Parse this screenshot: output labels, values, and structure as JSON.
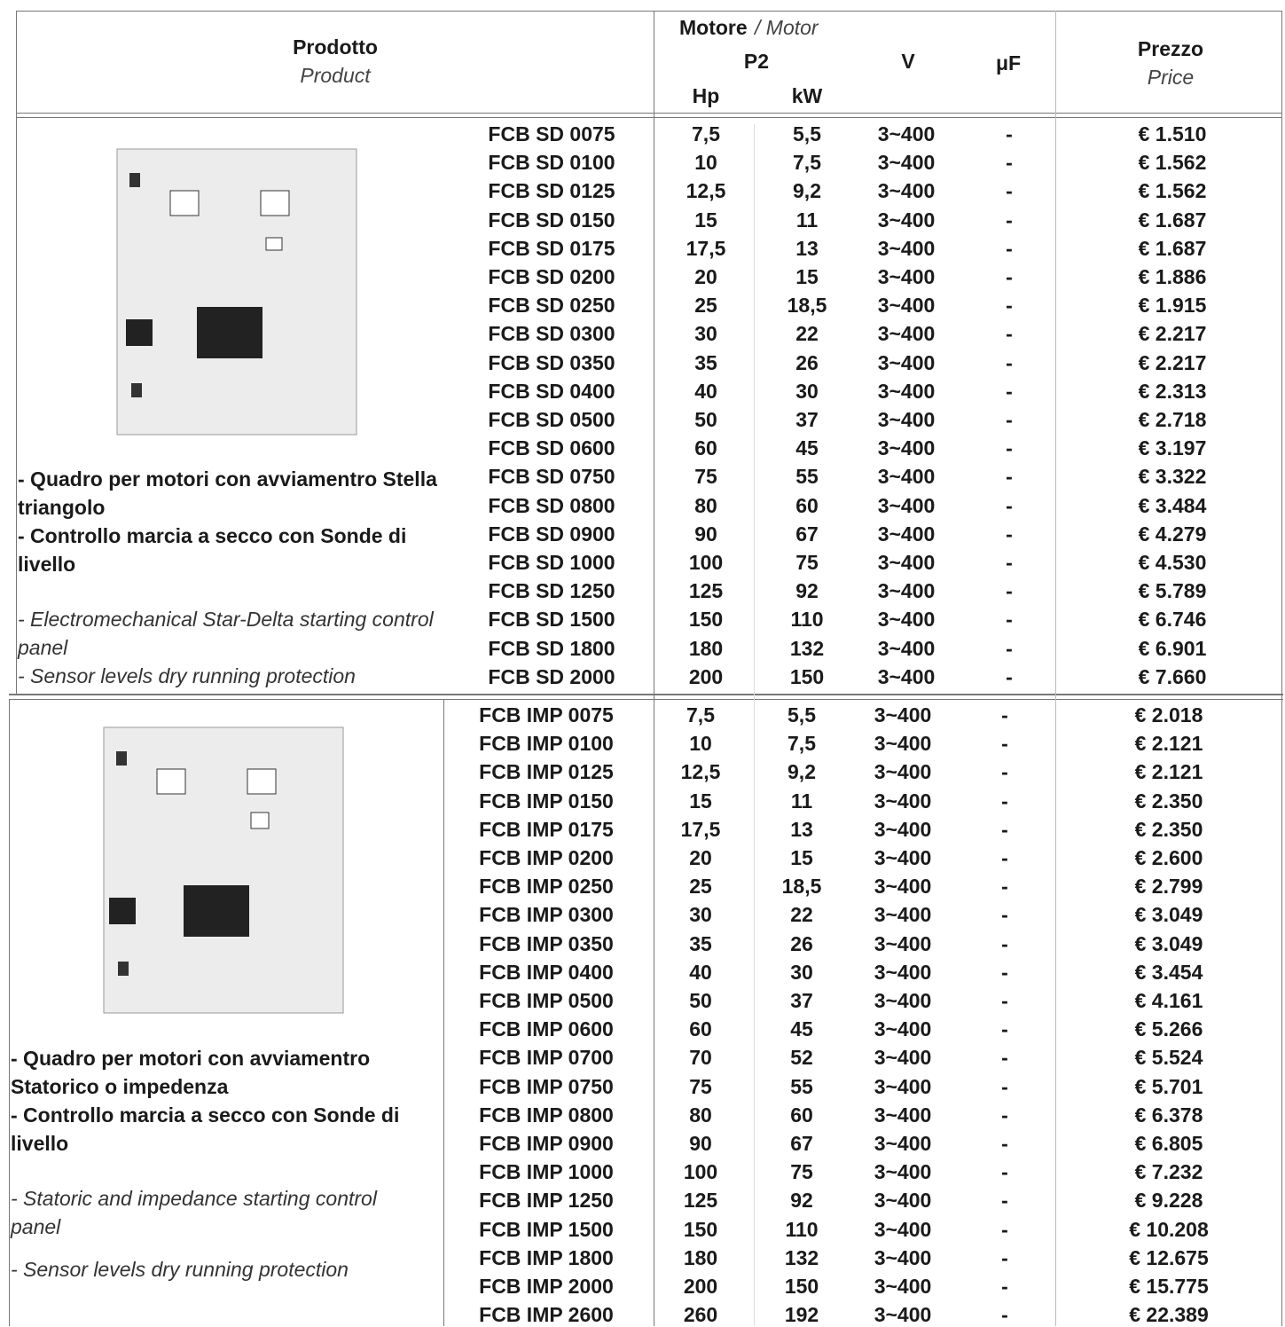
{
  "header": {
    "product_it": "Prodotto",
    "product_en": "Product",
    "motor_it": "Motore",
    "motor_en": "/ Motor",
    "p2": "P2",
    "hp": "Hp",
    "kw": "kW",
    "v": "V",
    "uf": "μF",
    "price_it": "Prezzo",
    "price_en": "Price"
  },
  "sections": [
    {
      "description_it": [
        "- Quadro per motori con avviamentro Stella triangolo",
        "- Controllo marcia a secco con Sonde di livello"
      ],
      "description_en": [
        "- Electromechanical Star-Delta starting control panel",
        "- Sensor levels dry running protection"
      ],
      "rows": [
        [
          "FCB SD 0075",
          "7,5",
          "5,5",
          "3~400",
          "-",
          "€ 1.510"
        ],
        [
          "FCB SD 0100",
          "10",
          "7,5",
          "3~400",
          "-",
          "€ 1.562"
        ],
        [
          "FCB SD 0125",
          "12,5",
          "9,2",
          "3~400",
          "-",
          "€ 1.562"
        ],
        [
          "FCB SD 0150",
          "15",
          "11",
          "3~400",
          "-",
          "€ 1.687"
        ],
        [
          "FCB SD 0175",
          "17,5",
          "13",
          "3~400",
          "-",
          "€ 1.687"
        ],
        [
          "FCB SD 0200",
          "20",
          "15",
          "3~400",
          "-",
          "€ 1.886"
        ],
        [
          "FCB SD 0250",
          "25",
          "18,5",
          "3~400",
          "-",
          "€ 1.915"
        ],
        [
          "FCB SD 0300",
          "30",
          "22",
          "3~400",
          "-",
          "€ 2.217"
        ],
        [
          "FCB SD 0350",
          "35",
          "26",
          "3~400",
          "-",
          "€ 2.217"
        ],
        [
          "FCB SD 0400",
          "40",
          "30",
          "3~400",
          "-",
          "€ 2.313"
        ],
        [
          "FCB SD 0500",
          "50",
          "37",
          "3~400",
          "-",
          "€ 2.718"
        ],
        [
          "FCB SD 0600",
          "60",
          "45",
          "3~400",
          "-",
          "€ 3.197"
        ],
        [
          "FCB SD 0750",
          "75",
          "55",
          "3~400",
          "-",
          "€ 3.322"
        ],
        [
          "FCB SD 0800",
          "80",
          "60",
          "3~400",
          "-",
          "€ 3.484"
        ],
        [
          "FCB SD 0900",
          "90",
          "67",
          "3~400",
          "-",
          "€ 4.279"
        ],
        [
          "FCB SD 1000",
          "100",
          "75",
          "3~400",
          "-",
          "€ 4.530"
        ],
        [
          "FCB SD 1250",
          "125",
          "92",
          "3~400",
          "-",
          "€ 5.789"
        ],
        [
          "FCB SD 1500",
          "150",
          "110",
          "3~400",
          "-",
          "€ 6.746"
        ],
        [
          "FCB SD 1800",
          "180",
          "132",
          "3~400",
          "-",
          "€ 6.901"
        ],
        [
          "FCB SD 2000",
          "200",
          "150",
          "3~400",
          "-",
          "€ 7.660"
        ]
      ]
    },
    {
      "description_it": [
        "- Quadro per motori con avviamentro Statorico o impedenza",
        "- Controllo marcia a secco con Sonde di livello"
      ],
      "description_en": [
        "- Statoric and impedance starting control panel",
        "- Sensor levels dry running protection"
      ],
      "rows": [
        [
          "FCB IMP 0075",
          "7,5",
          "5,5",
          "3~400",
          "-",
          "€ 2.018"
        ],
        [
          "FCB IMP 0100",
          "10",
          "7,5",
          "3~400",
          "-",
          "€ 2.121"
        ],
        [
          "FCB IMP 0125",
          "12,5",
          "9,2",
          "3~400",
          "-",
          "€ 2.121"
        ],
        [
          "FCB IMP 0150",
          "15",
          "11",
          "3~400",
          "-",
          "€ 2.350"
        ],
        [
          "FCB IMP 0175",
          "17,5",
          "13",
          "3~400",
          "-",
          "€ 2.350"
        ],
        [
          "FCB IMP 0200",
          "20",
          "15",
          "3~400",
          "-",
          "€ 2.600"
        ],
        [
          "FCB IMP 0250",
          "25",
          "18,5",
          "3~400",
          "-",
          "€ 2.799"
        ],
        [
          "FCB IMP 0300",
          "30",
          "22",
          "3~400",
          "-",
          "€ 3.049"
        ],
        [
          "FCB IMP 0350",
          "35",
          "26",
          "3~400",
          "-",
          "€ 3.049"
        ],
        [
          "FCB IMP 0400",
          "40",
          "30",
          "3~400",
          "-",
          "€ 3.454"
        ],
        [
          "FCB IMP 0500",
          "50",
          "37",
          "3~400",
          "-",
          "€ 4.161"
        ],
        [
          "FCB IMP 0600",
          "60",
          "45",
          "3~400",
          "-",
          "€ 5.266"
        ],
        [
          "FCB IMP 0700",
          "70",
          "52",
          "3~400",
          "-",
          "€ 5.524"
        ],
        [
          "FCB IMP 0750",
          "75",
          "55",
          "3~400",
          "-",
          "€ 5.701"
        ],
        [
          "FCB IMP 0800",
          "80",
          "60",
          "3~400",
          "-",
          "€ 6.378"
        ],
        [
          "FCB IMP 0900",
          "90",
          "67",
          "3~400",
          "-",
          "€ 6.805"
        ],
        [
          "FCB IMP 1000",
          "100",
          "75",
          "3~400",
          "-",
          "€ 7.232"
        ],
        [
          "FCB IMP 1250",
          "125",
          "92",
          "3~400",
          "-",
          "€ 9.228"
        ],
        [
          "FCB IMP 1500",
          "150",
          "110",
          "3~400",
          "-",
          "€ 10.208"
        ],
        [
          "FCB IMP 1800",
          "180",
          "132",
          "3~400",
          "-",
          "€ 12.675"
        ],
        [
          "FCB IMP 2000",
          "200",
          "150",
          "3~400",
          "-",
          "€ 15.775"
        ],
        [
          "FCB IMP 2600",
          "260",
          "192",
          "3~400",
          "-",
          "€ 22.389"
        ]
      ]
    }
  ]
}
